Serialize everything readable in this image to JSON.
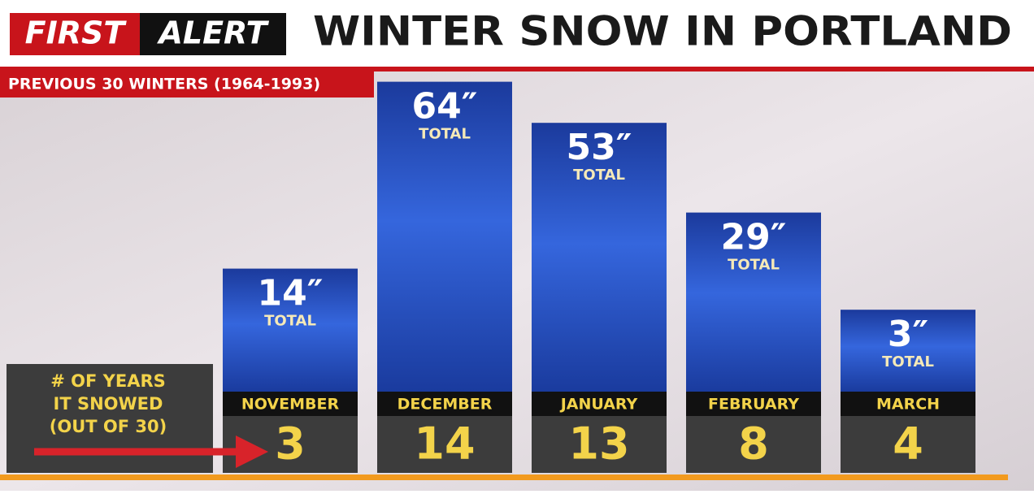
{
  "brand": {
    "first": "FIRST",
    "alert": "ALERT"
  },
  "chart_data": {
    "type": "bar",
    "title": "WINTER SNOW IN PORTLAND",
    "subtitle": "PREVIOUS 30 WINTERS (1964-1993)",
    "categories": [
      "NOVEMBER",
      "DECEMBER",
      "JANUARY",
      "FEBRUARY",
      "MARCH"
    ],
    "values": [
      14,
      64,
      53,
      29,
      3
    ],
    "value_labels": [
      "14″",
      "64″",
      "53″",
      "29″",
      "3″"
    ],
    "total_label": "TOTAL",
    "color": "#2a56c9",
    "years_label": [
      "# OF YEARS",
      "IT SNOWED",
      "(OUT OF 30)"
    ],
    "years_snowed": [
      3,
      14,
      13,
      8,
      4
    ]
  }
}
